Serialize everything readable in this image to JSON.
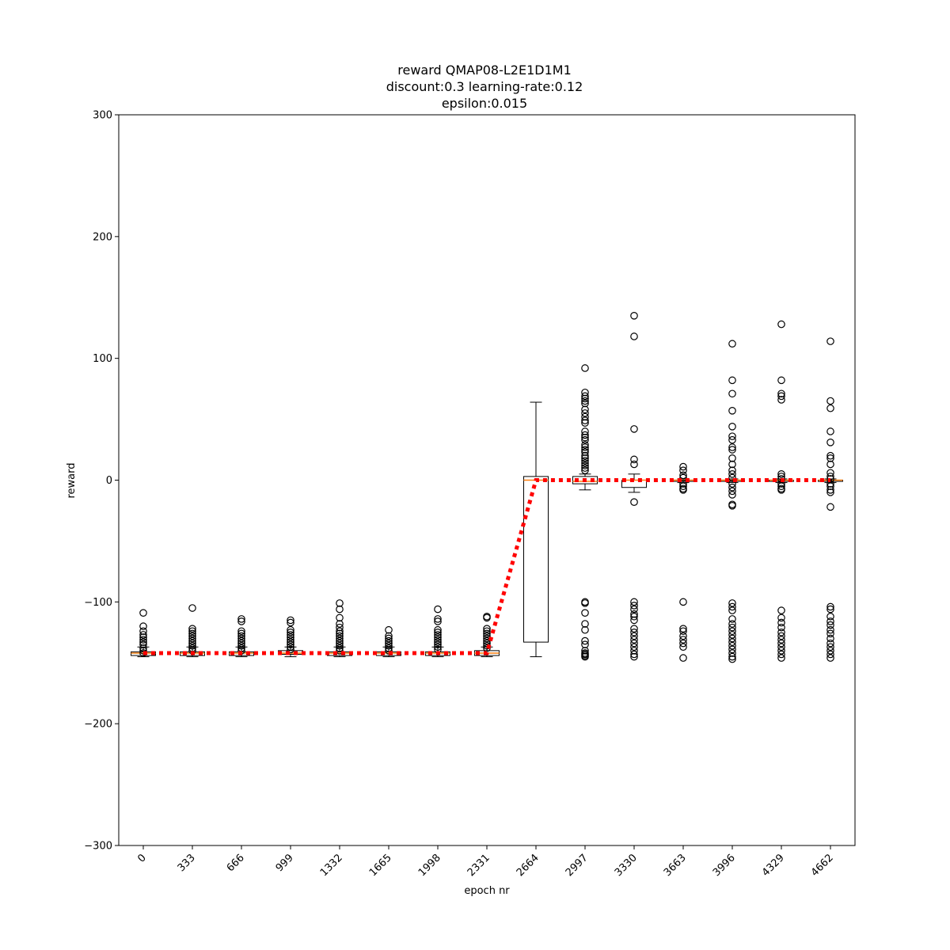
{
  "chart_data": {
    "type": "box",
    "title_lines": [
      "reward QMAP08-L2E1D1M1",
      "discount:0.3 learning-rate:0.12",
      "epsilon:0.015"
    ],
    "xlabel": "epoch nr",
    "ylabel": "reward",
    "ylim": [
      -300,
      300
    ],
    "yticks": [
      -300,
      -200,
      -100,
      0,
      100,
      200,
      300
    ],
    "categories": [
      "0",
      "333",
      "666",
      "999",
      "1332",
      "1665",
      "1998",
      "2331",
      "2664",
      "2997",
      "3330",
      "3663",
      "3996",
      "4329",
      "4662"
    ],
    "boxes": [
      {
        "q1": -144,
        "median": -142,
        "q3": -141,
        "whisker_low": -145,
        "whisker_high": -137,
        "outliers": [
          -109,
          -120,
          -124,
          -127,
          -129,
          -131,
          -133,
          -135,
          -138,
          -140,
          -142
        ]
      },
      {
        "q1": -144,
        "median": -142,
        "q3": -141,
        "whisker_low": -145,
        "whisker_high": -137,
        "outliers": [
          -105,
          -122,
          -124,
          -126,
          -128,
          -130,
          -132,
          -134,
          -136,
          -138,
          -140
        ]
      },
      {
        "q1": -144,
        "median": -142,
        "q3": -141,
        "whisker_low": -145,
        "whisker_high": -137,
        "outliers": [
          -114,
          -116,
          -124,
          -126,
          -128,
          -130,
          -132,
          -134,
          -136,
          -138,
          -140
        ]
      },
      {
        "q1": -143,
        "median": -142,
        "q3": -140,
        "whisker_low": -145,
        "whisker_high": -137,
        "outliers": [
          -115,
          -117,
          -123,
          -125,
          -127,
          -129,
          -131,
          -133,
          -135,
          -137,
          -139
        ]
      },
      {
        "q1": -144,
        "median": -142,
        "q3": -141,
        "whisker_low": -145,
        "whisker_high": -137,
        "outliers": [
          -101,
          -106,
          -113,
          -118,
          -121,
          -124,
          -126,
          -128,
          -130,
          -132,
          -134,
          -136,
          -138,
          -140
        ]
      },
      {
        "q1": -144,
        "median": -142,
        "q3": -141,
        "whisker_low": -145,
        "whisker_high": -137,
        "outliers": [
          -123,
          -128,
          -130,
          -132,
          -134,
          -136,
          -138,
          -140
        ]
      },
      {
        "q1": -144,
        "median": -142,
        "q3": -141,
        "whisker_low": -145,
        "whisker_high": -137,
        "outliers": [
          -106,
          -114,
          -116,
          -123,
          -125,
          -127,
          -129,
          -131,
          -133,
          -135,
          -137,
          -139
        ]
      },
      {
        "q1": -144,
        "median": -142,
        "q3": -140,
        "whisker_low": -145,
        "whisker_high": -137,
        "outliers": [
          -112,
          -113,
          -122,
          -124,
          -126,
          -128,
          -130,
          -132,
          -134,
          -136,
          -138
        ]
      },
      {
        "q1": -133,
        "median": 0,
        "q3": 3,
        "whisker_low": -145,
        "whisker_high": 64,
        "outliers": []
      },
      {
        "q1": -3,
        "median": -1,
        "q3": 3,
        "whisker_low": -8,
        "whisker_high": 5,
        "outliers": [
          92,
          72,
          69,
          67,
          65,
          63,
          58,
          55,
          52,
          49,
          47,
          40,
          37,
          35,
          33,
          29,
          27,
          25,
          23,
          20,
          18,
          16,
          14,
          12,
          10,
          8,
          -100,
          -101,
          -109,
          -118,
          -123,
          -132,
          -135,
          -140,
          -142,
          -143,
          -144,
          -145
        ]
      },
      {
        "q1": -6,
        "median": 0,
        "q3": 0,
        "whisker_low": -10,
        "whisker_high": 5,
        "outliers": [
          135,
          118,
          42,
          17,
          13,
          -18,
          -100,
          -103,
          -106,
          -110,
          -112,
          -115,
          -122,
          -125,
          -128,
          -131,
          -134,
          -137,
          -140,
          -143,
          -145
        ]
      },
      {
        "q1": -1,
        "median": 0,
        "q3": 0,
        "whisker_low": -2,
        "whisker_high": 1,
        "outliers": [
          11,
          8,
          4,
          2,
          -3,
          -5,
          -7,
          -8,
          -100,
          -122,
          -124,
          -128,
          -131,
          -134,
          -137,
          -146
        ]
      },
      {
        "q1": -1,
        "median": 0,
        "q3": 0,
        "whisker_low": -2,
        "whisker_high": 1,
        "outliers": [
          112,
          82,
          71,
          57,
          44,
          36,
          33,
          27,
          25,
          18,
          13,
          8,
          5,
          2,
          -3,
          -6,
          -9,
          -12,
          -20,
          -21,
          -101,
          -104,
          -107,
          -114,
          -118,
          -121,
          -124,
          -127,
          -130,
          -133,
          -136,
          -139,
          -142,
          -145,
          -147
        ]
      },
      {
        "q1": -1,
        "median": 0,
        "q3": 0,
        "whisker_low": -2,
        "whisker_high": 1,
        "outliers": [
          128,
          82,
          71,
          69,
          66,
          5,
          3,
          1,
          -3,
          -5,
          -7,
          -8,
          -107,
          -113,
          -117,
          -121,
          -125,
          -128,
          -131,
          -134,
          -137,
          -140,
          -143,
          -146
        ]
      },
      {
        "q1": -1,
        "median": 0,
        "q3": 0,
        "whisker_low": -2,
        "whisker_high": 1,
        "outliers": [
          114,
          65,
          59,
          40,
          31,
          20,
          18,
          13,
          6,
          3,
          1,
          -3,
          -5,
          -8,
          -10,
          -22,
          -104,
          -106,
          -112,
          -116,
          -119,
          -123,
          -126,
          -130,
          -134,
          -137,
          -140,
          -143,
          -146
        ]
      }
    ],
    "mean_line": {
      "style": "dotted",
      "color": "#ff0000",
      "values": [
        -142,
        -142,
        -142,
        -142,
        -142,
        -142,
        -142,
        -142,
        0,
        0,
        0,
        0,
        0,
        0,
        0
      ]
    },
    "colors": {
      "box_edge": "#000000",
      "median": "#ff7f0e",
      "mean_line": "#ff0000",
      "outlier_edge": "#000000"
    },
    "grid": false,
    "legend": "none"
  }
}
